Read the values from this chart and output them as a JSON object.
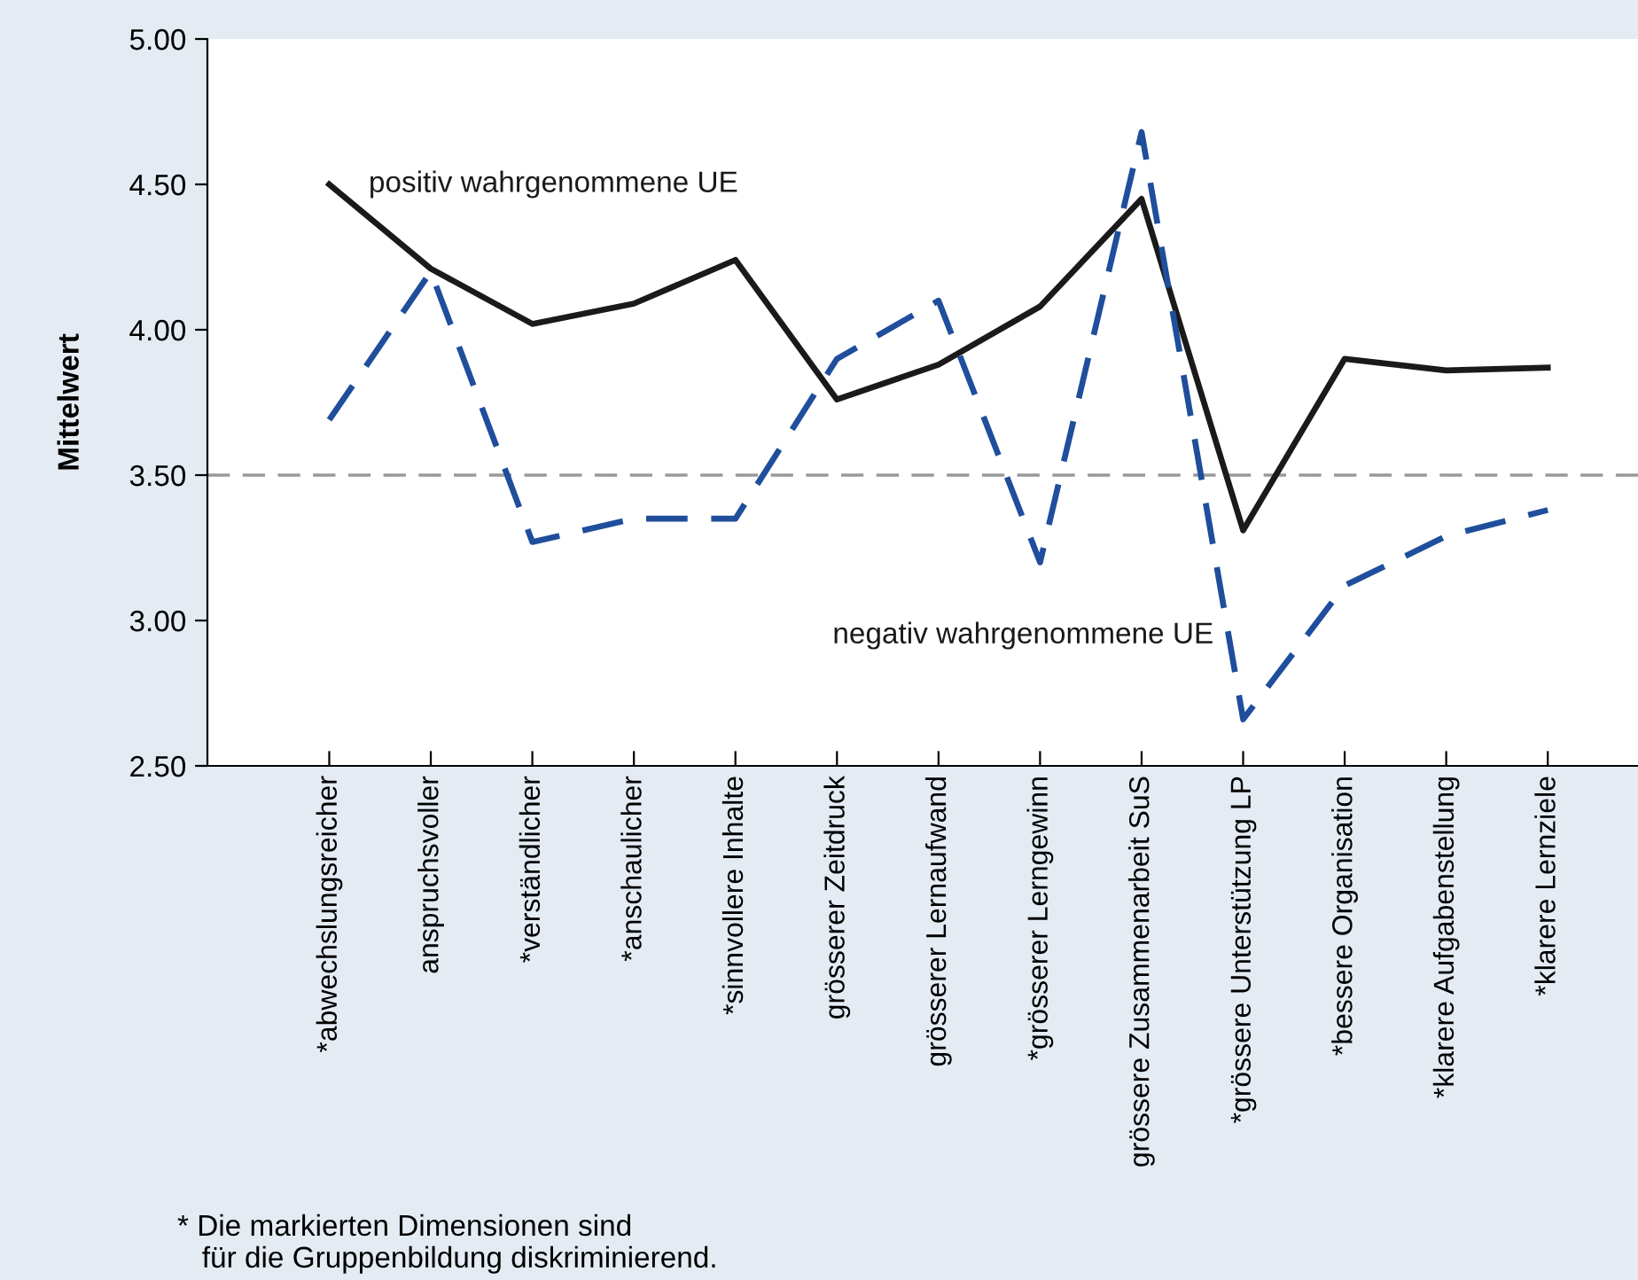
{
  "chart_data": {
    "type": "line",
    "ylabel": "Mittelwert",
    "categories": [
      "*abwechslungsreicher",
      "anspruchsvoller",
      "*verständlicher",
      "*anschaulicher",
      "*sinnvollere Inhalte",
      "grösserer Zeitdruck",
      "grösserer Lernaufwand",
      "*grösserer Lerngewinn",
      "grössere Zusammenarbeit SuS",
      "*grössere Unterstützung LP",
      "*bessere Organisation",
      "*klarere Aufgabenstellung",
      "*klarere Lernziele"
    ],
    "series": [
      {
        "name": "positiv wahrgenommene UE",
        "color": "#1a1a1a",
        "line_style": "solid",
        "values": [
          4.5,
          4.21,
          4.02,
          4.09,
          4.24,
          3.76,
          3.88,
          4.08,
          4.45,
          3.31,
          3.9,
          3.86,
          3.87
        ]
      },
      {
        "name": "negativ wahrgenommene UE",
        "color": "#1f4e9c",
        "line_style": "dashed",
        "values": [
          3.69,
          4.2,
          3.27,
          3.35,
          3.35,
          3.9,
          4.1,
          3.2,
          4.68,
          2.66,
          3.12,
          3.29,
          3.38
        ]
      }
    ],
    "ylim": [
      2.5,
      5.0
    ],
    "yticks": [
      {
        "value": 2.5,
        "label": "2.50"
      },
      {
        "value": 3.0,
        "label": "3.00"
      },
      {
        "value": 3.5,
        "label": "3.50"
      },
      {
        "value": 4.0,
        "label": "4.00"
      },
      {
        "value": 4.5,
        "label": "4.50"
      },
      {
        "value": 5.0,
        "label": "5.00"
      }
    ],
    "ref_lines": [
      {
        "axis": "y",
        "value": 3.5,
        "color": "#999999",
        "line_style": "dashed"
      }
    ],
    "grid": false,
    "legend": false,
    "marker": "none",
    "annotations": [
      "* Die markierten Dimensionen sind\n   für die Gruppenbildung diskriminierend."
    ]
  }
}
